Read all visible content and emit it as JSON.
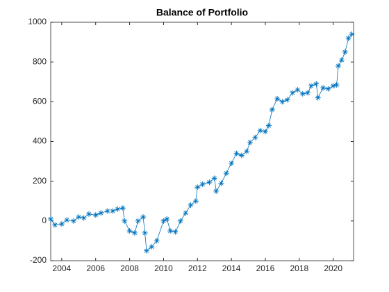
{
  "chart_data": {
    "type": "line",
    "title": "Balance of Portfolio",
    "x": [
      2003.35,
      2003.6,
      2004.0,
      2004.3,
      2004.7,
      2005.0,
      2005.3,
      2005.6,
      2006.0,
      2006.3,
      2006.7,
      2007.0,
      2007.3,
      2007.6,
      2007.7,
      2008.0,
      2008.3,
      2008.5,
      2008.8,
      2008.9,
      2009.0,
      2009.3,
      2009.6,
      2010.0,
      2010.2,
      2010.4,
      2010.7,
      2011.0,
      2011.3,
      2011.6,
      2011.9,
      2012.0,
      2012.3,
      2012.7,
      2013.0,
      2013.1,
      2013.4,
      2013.7,
      2014.0,
      2014.3,
      2014.6,
      2014.9,
      2015.1,
      2015.4,
      2015.7,
      2016.0,
      2016.2,
      2016.4,
      2016.7,
      2017.0,
      2017.3,
      2017.6,
      2017.9,
      2018.2,
      2018.5,
      2018.7,
      2019.0,
      2019.1,
      2019.4,
      2019.7,
      2020.0,
      2020.2,
      2020.3,
      2020.5,
      2020.7,
      2020.9,
      2021.1
    ],
    "series": [
      {
        "color": "#0072bd",
        "values": [
          10,
          -20,
          -15,
          5,
          0,
          20,
          15,
          35,
          30,
          40,
          50,
          50,
          60,
          65,
          0,
          -50,
          -60,
          0,
          20,
          -60,
          -150,
          -130,
          -100,
          0,
          10,
          -50,
          -55,
          0,
          40,
          80,
          100,
          170,
          185,
          195,
          215,
          150,
          190,
          240,
          290,
          340,
          330,
          350,
          395,
          420,
          455,
          450,
          480,
          560,
          615,
          600,
          610,
          645,
          660,
          640,
          645,
          680,
          690,
          620,
          670,
          665,
          680,
          685,
          780,
          810,
          850,
          920,
          940
        ]
      }
    ],
    "xlim": [
      2003.35,
      2021.2
    ],
    "xticks": [
      2004,
      2006,
      2008,
      2010,
      2012,
      2014,
      2016,
      2018,
      2020
    ],
    "ylim": [
      -200,
      1000
    ],
    "yticks": [
      -200,
      0,
      200,
      400,
      600,
      800,
      1000
    ]
  }
}
